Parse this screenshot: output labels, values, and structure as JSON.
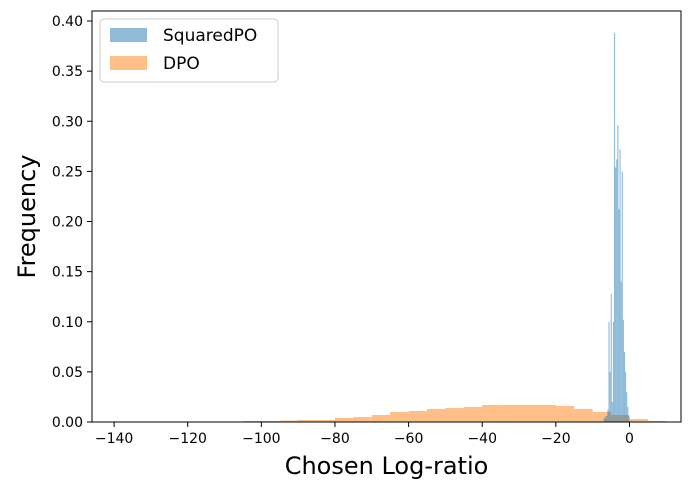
{
  "chart_data": {
    "type": "bar",
    "title": "",
    "xlabel": "Chosen Log-ratio",
    "ylabel": "Frequency",
    "xlim": [
      -146,
      14
    ],
    "ylim": [
      0,
      0.41
    ],
    "x_ticks": [
      -140,
      -120,
      -100,
      -80,
      -60,
      -40,
      -20,
      0
    ],
    "x_tick_labels": [
      "−140",
      "−120",
      "−100",
      "−80",
      "−60",
      "−40",
      "−20",
      "0"
    ],
    "y_ticks": [
      0,
      0.05,
      0.1,
      0.15,
      0.2,
      0.25,
      0.3,
      0.35,
      0.4
    ],
    "y_tick_labels": [
      "0.00",
      "0.05",
      "0.10",
      "0.15",
      "0.20",
      "0.25",
      "0.30",
      "0.35",
      "0.40"
    ],
    "grid": false,
    "legend_position": "top-left",
    "series": [
      {
        "name": "SquaredPO",
        "color": "#1f77b4",
        "opacity": 0.5,
        "bins": [
          {
            "x0": -7.0,
            "x1": -6.5,
            "y": 0.004
          },
          {
            "x0": -6.5,
            "x1": -6.0,
            "y": 0.006
          },
          {
            "x0": -6.0,
            "x1": -5.7,
            "y": 0.012
          },
          {
            "x0": -5.7,
            "x1": -5.4,
            "y": 0.1
          },
          {
            "x0": -5.4,
            "x1": -5.1,
            "y": 0.05
          },
          {
            "x0": -5.1,
            "x1": -4.8,
            "y": 0.128
          },
          {
            "x0": -4.8,
            "x1": -4.5,
            "y": 0.02
          },
          {
            "x0": -4.5,
            "x1": -4.2,
            "y": 0.1
          },
          {
            "x0": -4.2,
            "x1": -3.9,
            "y": 0.388
          },
          {
            "x0": -3.9,
            "x1": -3.6,
            "y": 0.254
          },
          {
            "x0": -3.6,
            "x1": -3.3,
            "y": 0.262
          },
          {
            "x0": -3.3,
            "x1": -3.0,
            "y": 0.296
          },
          {
            "x0": -3.0,
            "x1": -2.7,
            "y": 0.212
          },
          {
            "x0": -2.7,
            "x1": -2.4,
            "y": 0.272
          },
          {
            "x0": -2.4,
            "x1": -2.1,
            "y": 0.14
          },
          {
            "x0": -2.1,
            "x1": -1.8,
            "y": 0.25
          },
          {
            "x0": -1.8,
            "x1": -1.5,
            "y": 0.102
          },
          {
            "x0": -1.5,
            "x1": -1.2,
            "y": 0.07
          },
          {
            "x0": -1.2,
            "x1": -0.9,
            "y": 0.05
          },
          {
            "x0": -0.9,
            "x1": -0.6,
            "y": 0.03
          },
          {
            "x0": -0.6,
            "x1": -0.3,
            "y": 0.015
          },
          {
            "x0": -0.3,
            "x1": 0.0,
            "y": 0.006
          }
        ]
      },
      {
        "name": "DPO",
        "color": "#ff7f0e",
        "opacity": 0.5,
        "bins": [
          {
            "x0": -140,
            "x1": -135,
            "y": 0.0005
          },
          {
            "x0": -135,
            "x1": -130,
            "y": 0.0005
          },
          {
            "x0": -130,
            "x1": -125,
            "y": 0.0005
          },
          {
            "x0": -125,
            "x1": -120,
            "y": 0.0005
          },
          {
            "x0": -120,
            "x1": -115,
            "y": 0.0005
          },
          {
            "x0": -115,
            "x1": -110,
            "y": 0.0005
          },
          {
            "x0": -110,
            "x1": -105,
            "y": 0.0005
          },
          {
            "x0": -105,
            "x1": -100,
            "y": 0.001
          },
          {
            "x0": -100,
            "x1": -95,
            "y": 0.001
          },
          {
            "x0": -95,
            "x1": -90,
            "y": 0.0015
          },
          {
            "x0": -90,
            "x1": -85,
            "y": 0.002
          },
          {
            "x0": -85,
            "x1": -80,
            "y": 0.002
          },
          {
            "x0": -80,
            "x1": -75,
            "y": 0.004
          },
          {
            "x0": -75,
            "x1": -70,
            "y": 0.005
          },
          {
            "x0": -70,
            "x1": -65,
            "y": 0.007
          },
          {
            "x0": -65,
            "x1": -60,
            "y": 0.01
          },
          {
            "x0": -60,
            "x1": -55,
            "y": 0.011
          },
          {
            "x0": -55,
            "x1": -50,
            "y": 0.013
          },
          {
            "x0": -50,
            "x1": -45,
            "y": 0.014
          },
          {
            "x0": -45,
            "x1": -40,
            "y": 0.015
          },
          {
            "x0": -40,
            "x1": -35,
            "y": 0.017
          },
          {
            "x0": -35,
            "x1": -30,
            "y": 0.017
          },
          {
            "x0": -30,
            "x1": -25,
            "y": 0.017
          },
          {
            "x0": -25,
            "x1": -20,
            "y": 0.017
          },
          {
            "x0": -20,
            "x1": -15,
            "y": 0.016
          },
          {
            "x0": -15,
            "x1": -10,
            "y": 0.013
          },
          {
            "x0": -10,
            "x1": -5,
            "y": 0.01
          },
          {
            "x0": -5,
            "x1": 0,
            "y": 0.007
          },
          {
            "x0": 0,
            "x1": 5,
            "y": 0.003
          },
          {
            "x0": 5,
            "x1": 10,
            "y": 0.001
          }
        ]
      }
    ]
  }
}
